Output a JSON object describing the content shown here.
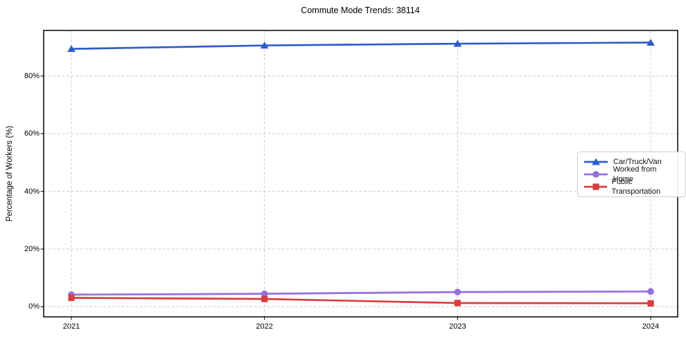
{
  "chart_data": {
    "type": "line",
    "title": "Commute Mode Trends: 38114",
    "ylabel": "Percentage of Workers (%)",
    "xlabel": "",
    "x": [
      2021,
      2022,
      2023,
      2024
    ],
    "x_tick_labels": [
      "2021",
      "2022",
      "2023",
      "2024"
    ],
    "y_ticks": [
      0,
      20,
      40,
      60,
      80
    ],
    "y_tick_labels": [
      "0%",
      "20%",
      "40%",
      "60%",
      "80%"
    ],
    "ylim": [
      -3.5,
      95.8
    ],
    "grid": true,
    "grid_style": "dashed",
    "legend_position": "center-right",
    "colors": {
      "car_truck_van": "#2e5cc7",
      "worked_from_home": "#9370db",
      "public_transportation": "#d83c3c",
      "grid": "#cdcdcd",
      "axis_border": "#000000"
    },
    "series": [
      {
        "name": "Car/Truck/Van",
        "marker": "triangle",
        "color": "#2e5cc7",
        "values": [
          89.4,
          90.6,
          91.2,
          91.6
        ]
      },
      {
        "name": "Worked from Home",
        "marker": "circle",
        "color": "#9370db",
        "values": [
          4.2,
          4.5,
          5.1,
          5.3
        ]
      },
      {
        "name": "Public Transportation",
        "marker": "square",
        "color": "#d83c3c",
        "values": [
          3.1,
          2.7,
          1.3,
          1.2
        ]
      }
    ]
  }
}
